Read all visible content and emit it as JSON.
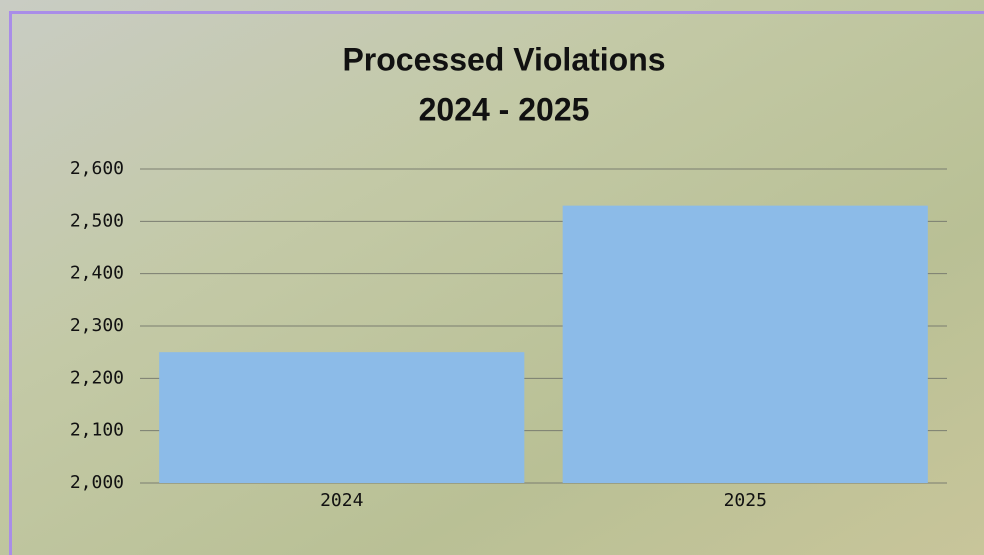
{
  "chart_data": {
    "type": "bar",
    "title": [
      "Processed Violations",
      "2024 - 2025"
    ],
    "categories": [
      "2024",
      "2025"
    ],
    "values": [
      2250,
      2530
    ],
    "color": "#8cbbe8",
    "ylim": [
      2000,
      2600
    ],
    "yticks": [
      {
        "value": 2000,
        "label": "2,000"
      },
      {
        "value": 2100,
        "label": "2,100"
      },
      {
        "value": 2200,
        "label": "2,200"
      },
      {
        "value": 2300,
        "label": "2,300"
      },
      {
        "value": 2400,
        "label": "2,400"
      },
      {
        "value": 2500,
        "label": "2,500"
      },
      {
        "value": 2600,
        "label": "2,600"
      }
    ],
    "grid": true
  }
}
